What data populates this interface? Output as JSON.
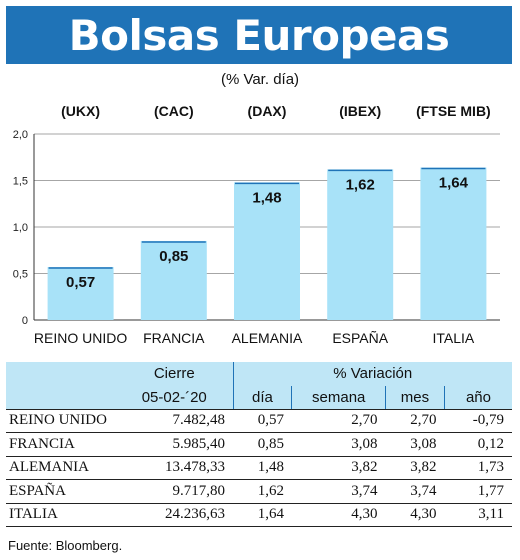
{
  "title": "Bolsas Europeas",
  "subtitle": "(% Var. día)",
  "chart_data": {
    "type": "bar",
    "tickers": [
      "(UKX)",
      "(CAC)",
      "(DAX)",
      "(IBEX)",
      "(FTSE MIB)"
    ],
    "categories": [
      "REINO UNIDO",
      "FRANCIA",
      "ALEMANIA",
      "ESPAÑA",
      "ITALIA"
    ],
    "values": [
      0.57,
      0.85,
      1.48,
      1.62,
      1.64
    ],
    "value_labels": [
      "0,57",
      "0,85",
      "1,48",
      "1,62",
      "1,64"
    ],
    "ylim": [
      0,
      2.0
    ],
    "yticks": [
      0,
      0.5,
      1.0,
      1.5,
      2.0
    ],
    "ytick_labels": [
      "0",
      "0,5",
      "1,0",
      "1,5",
      "2,0"
    ],
    "grid": true,
    "bar_color": "#a8e2f8"
  },
  "table": {
    "header_cierre": "Cierre",
    "header_variacion": "% Variación",
    "header_date": "05-02-´20",
    "columns": [
      "día",
      "semana",
      "mes",
      "año"
    ],
    "rows": [
      {
        "name": "REINO UNIDO",
        "cierre": "7.482,48",
        "dia": "0,57",
        "semana": "2,70",
        "mes": "2,70",
        "ano": "-0,79"
      },
      {
        "name": "FRANCIA",
        "cierre": "5.985,40",
        "dia": "0,85",
        "semana": "3,08",
        "mes": "3,08",
        "ano": "0,12"
      },
      {
        "name": "ALEMANIA",
        "cierre": "13.478,33",
        "dia": "1,48",
        "semana": "3,82",
        "mes": "3,82",
        "ano": "1,73"
      },
      {
        "name": "ESPAÑA",
        "cierre": "9.717,80",
        "dia": "1,62",
        "semana": "3,74",
        "mes": "3,74",
        "ano": "1,77"
      },
      {
        "name": "ITALIA",
        "cierre": "24.236,63",
        "dia": "1,64",
        "semana": "4,30",
        "mes": "4,30",
        "ano": "3,11"
      }
    ]
  },
  "source": "Fuente: Bloomberg.",
  "colors": {
    "banner": "#1f73b7",
    "table_header": "#bfe6f6"
  }
}
